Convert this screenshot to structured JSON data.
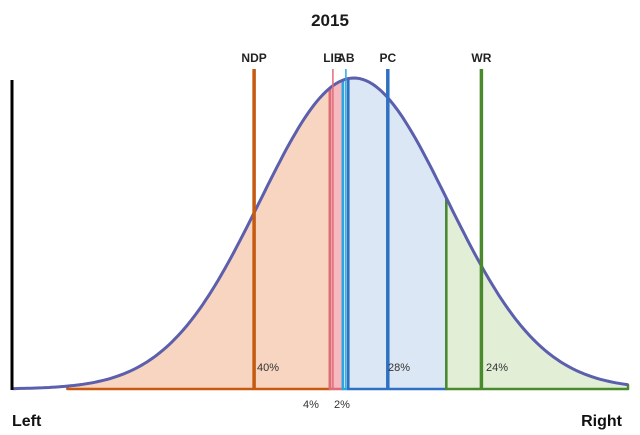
{
  "chart_data": {
    "type": "area",
    "title": "2015",
    "x_labels": {
      "left": "Left",
      "right": "Right"
    },
    "curve": {
      "mean": 0.555,
      "sd": 0.152,
      "color": "#5b5fad"
    },
    "segments": [
      {
        "name": "NDP",
        "from": 0.09,
        "to": 0.516,
        "share_label": "40%",
        "fill": "#f8d5c0",
        "stroke": "#c65a11"
      },
      {
        "name": "LIB",
        "from": 0.516,
        "to": 0.537,
        "share_label": "4%",
        "fill": "#f6b9c0",
        "stroke": "#e06c7a"
      },
      {
        "name": "AB",
        "from": 0.537,
        "to": 0.546,
        "share_label": "2%",
        "fill": "#cfe6f3",
        "stroke": "#2aa7df"
      },
      {
        "name": "PC",
        "from": 0.546,
        "to": 0.705,
        "share_label": "28%",
        "fill": "#dbe7f5",
        "stroke": "#2e70c2"
      },
      {
        "name": "WR",
        "from": 0.705,
        "to": 1.0,
        "share_label": "24%",
        "fill": "#e2efd6",
        "stroke": "#4a8a2c"
      }
    ],
    "party_positions": [
      {
        "name": "NDP",
        "x": 0.393,
        "color": "#c65a11"
      },
      {
        "name": "LIB",
        "x": 0.521,
        "color": "#e06c7a"
      },
      {
        "name": "AB",
        "x": 0.542,
        "color": "#2aa7df"
      },
      {
        "name": "PC",
        "x": 0.61,
        "color": "#2e70c2"
      },
      {
        "name": "WR",
        "x": 0.762,
        "color": "#4a8a2c"
      }
    ]
  }
}
